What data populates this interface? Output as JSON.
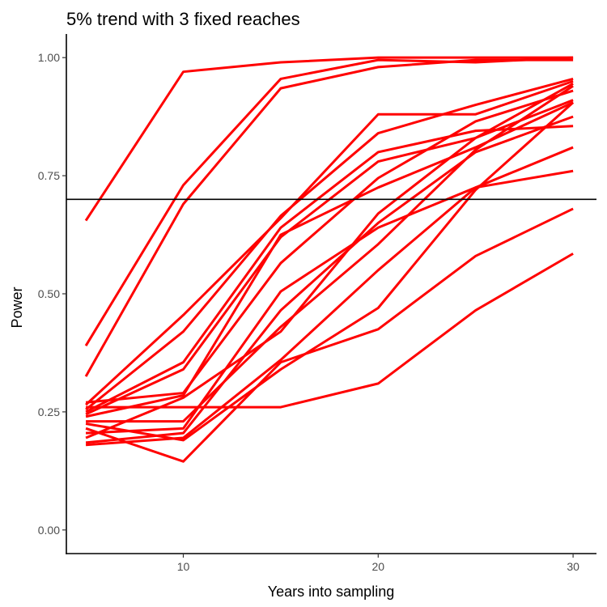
{
  "chart_data": {
    "type": "line",
    "title": "5% trend with 3 fixed reaches",
    "xlabel": "Years into sampling",
    "ylabel": "Power",
    "xlim": [
      4,
      31.2
    ],
    "ylim": [
      -0.05,
      1.05
    ],
    "x_ticks": [
      10,
      20,
      30
    ],
    "x_tick_labels": [
      "10",
      "20",
      "30"
    ],
    "y_ticks": [
      0,
      0.25,
      0.5,
      0.75,
      1.0
    ],
    "y_tick_labels": [
      "0.00",
      "0.25",
      "0.50",
      "0.75",
      "1.00"
    ],
    "grid": false,
    "legend": "none",
    "hline": 0.7,
    "hline_color": "#000000",
    "series_color": "#ff0000",
    "x": [
      5,
      10,
      15,
      20,
      25,
      30
    ],
    "series": [
      {
        "values": [
          0.655,
          0.97,
          0.99,
          1.0,
          1.0,
          1.0
        ]
      },
      {
        "values": [
          0.39,
          0.73,
          0.955,
          0.995,
          0.99,
          1.0
        ]
      },
      {
        "values": [
          0.325,
          0.69,
          0.935,
          0.98,
          0.995,
          0.995
        ]
      },
      {
        "values": [
          0.265,
          0.455,
          0.66,
          0.88,
          0.88,
          0.95
        ]
      },
      {
        "values": [
          0.255,
          0.42,
          0.665,
          0.84,
          0.9,
          0.955
        ]
      },
      {
        "values": [
          0.25,
          0.355,
          0.64,
          0.8,
          0.845,
          0.855
        ]
      },
      {
        "values": [
          0.245,
          0.34,
          0.62,
          0.78,
          0.83,
          0.945
        ]
      },
      {
        "values": [
          0.27,
          0.29,
          0.565,
          0.745,
          0.865,
          0.93
        ]
      },
      {
        "values": [
          0.24,
          0.285,
          0.625,
          0.725,
          0.81,
          0.905
        ]
      },
      {
        "values": [
          0.26,
          0.26,
          0.26,
          0.31,
          0.465,
          0.585
        ]
      },
      {
        "values": [
          0.23,
          0.23,
          0.43,
          0.605,
          0.805,
          0.94
        ]
      },
      {
        "values": [
          0.205,
          0.215,
          0.505,
          0.64,
          0.725,
          0.76
        ]
      },
      {
        "values": [
          0.195,
          0.28,
          0.42,
          0.67,
          0.83,
          0.91
        ]
      },
      {
        "values": [
          0.185,
          0.205,
          0.465,
          0.65,
          0.8,
          0.875
        ]
      },
      {
        "values": [
          0.18,
          0.195,
          0.36,
          0.55,
          0.725,
          0.81
        ]
      },
      {
        "values": [
          0.225,
          0.19,
          0.34,
          0.47,
          0.72,
          0.905
        ]
      },
      {
        "values": [
          0.215,
          0.145,
          0.355,
          0.425,
          0.58,
          0.68
        ]
      }
    ]
  }
}
